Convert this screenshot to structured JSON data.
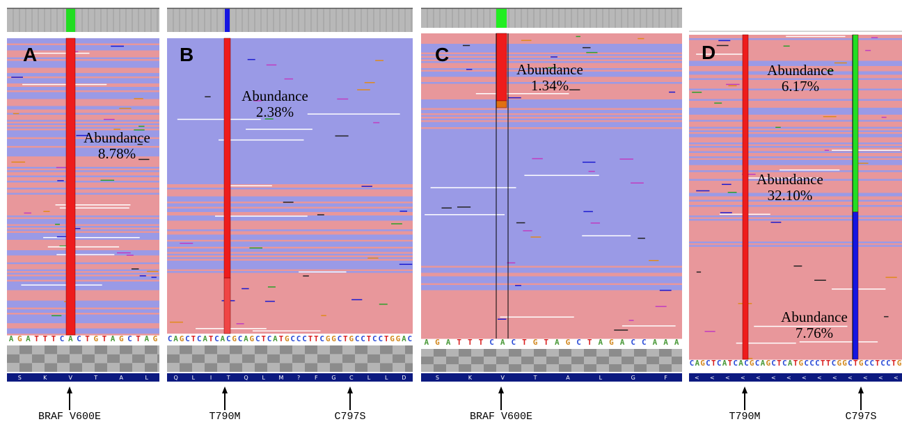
{
  "panels": [
    {
      "letter": "A",
      "annotations": [
        {
          "label": "Abundance",
          "value": "8.78%"
        }
      ],
      "sequence": "AGATTTCACTGTAGCTAG",
      "nav": "SKVTAL",
      "markers": [
        "BRAF V600E"
      ]
    },
    {
      "letter": "B",
      "annotations": [
        {
          "label": "Abundance",
          "value": "2.38%"
        }
      ],
      "sequence": "CAGCTCATCACGCAGCTCATGCCCTTCGGCTGCCTCCTGGAC",
      "nav": "QLITQLM?FGCLLD",
      "markers": [
        "T790M",
        "C797S"
      ]
    },
    {
      "letter": "C",
      "annotations": [
        {
          "label": "Abundance",
          "value": "1.34%"
        }
      ],
      "sequence": "AGATTTCACTGTAGCTAGACCAAA",
      "nav": "SKVTALGF",
      "markers": [
        "BRAF V600E"
      ]
    },
    {
      "letter": "D",
      "annotations": [
        {
          "label": "Abundance",
          "value": "6.17%"
        },
        {
          "label": "Abundance",
          "value": "32.10%"
        },
        {
          "label": "Abundance",
          "value": "7.76%"
        }
      ],
      "sequence": "CAGCTCATCACGCAGCTCATGCCCTTCGGCTGCCTCCTG",
      "markers": [
        "T790M",
        "C797S"
      ]
    }
  ]
}
